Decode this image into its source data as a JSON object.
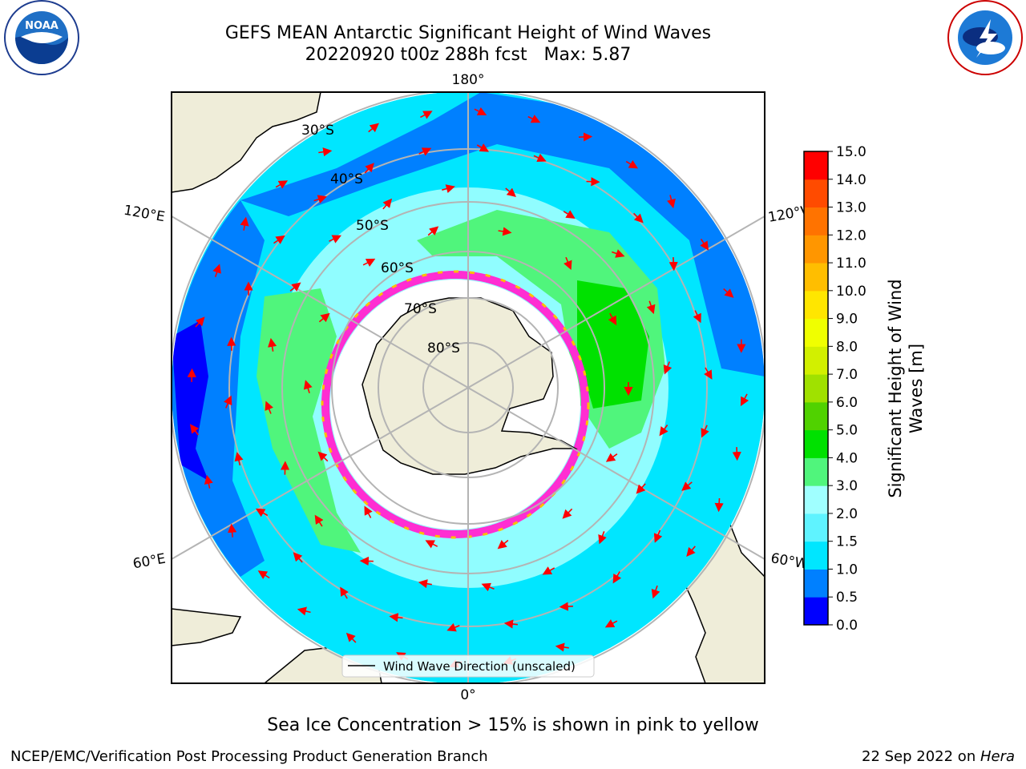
{
  "header": {
    "title_line1": "GEFS MEAN Antarctic Significant Height of Wind Waves",
    "title_line2": "20220920 t00z 288h fcst   Max: 5.87",
    "left_logo": {
      "text": "NOAA",
      "ring_text": "NATIONAL OCEANIC AND ATMOSPHERIC ADMINISTRATION · U.S. DEPARTMENT OF COMMERCE"
    },
    "right_logo": {
      "ring_text": "NATIONAL WEATHER SERVICE"
    }
  },
  "map": {
    "projection": "south-polar-stereographic",
    "meridian_labels": {
      "top": "180°",
      "bottom": "0°",
      "upper_left": "120°E",
      "upper_right": "120°W",
      "lower_left": "60°E",
      "lower_right": "60°W"
    },
    "latitude_labels": [
      "30°S",
      "40°S",
      "50°S",
      "60°S",
      "70°S",
      "80°S"
    ],
    "legend_label": "Wind Wave Direction (unscaled)",
    "colors": {
      "land": "#efedd9",
      "ice": "#ffffff",
      "arrow": "#ff0000",
      "grid": "#b4b4b4",
      "ice_edge": "#ff2dd2"
    }
  },
  "colorbar": {
    "label_line1": "Significant Height of Wind",
    "label_line2": "Waves [m]",
    "ticks": [
      "0.0",
      "0.5",
      "1.0",
      "1.5",
      "2.0",
      "3.0",
      "4.0",
      "5.0",
      "6.0",
      "7.0",
      "8.0",
      "9.0",
      "10.0",
      "11.0",
      "12.0",
      "13.0",
      "14.0",
      "15.0"
    ],
    "colors": [
      "#0000ff",
      "#0080ff",
      "#00e6ff",
      "#5ff3ff",
      "#a0ffff",
      "#50f57c",
      "#00e100",
      "#50d200",
      "#a0e100",
      "#d2f000",
      "#f0ff00",
      "#ffe600",
      "#ffbe00",
      "#ff9600",
      "#ff7300",
      "#ff4b00",
      "#ff0000"
    ]
  },
  "footer": {
    "note": "Sea Ice Concentration > 15% is shown in pink to yellow",
    "credit": "NCEP/EMC/Verification Post Processing Product Generation Branch",
    "date": "22 Sep 2022 on ",
    "host": "Hera"
  }
}
